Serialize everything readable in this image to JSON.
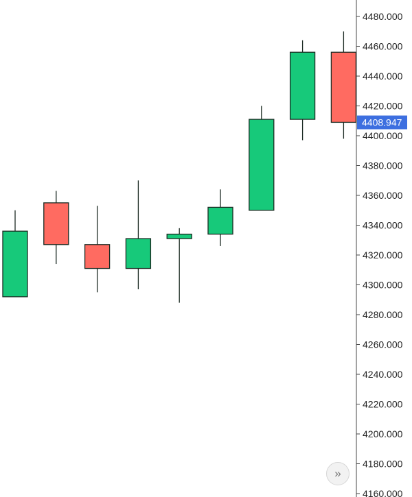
{
  "chart_data": {
    "type": "candlestick",
    "y_axis": {
      "position": "right",
      "ylim": [
        4160,
        4480
      ],
      "ticks": [
        4480,
        4460,
        4440,
        4420,
        4400,
        4380,
        4360,
        4340,
        4320,
        4300,
        4280,
        4260,
        4240,
        4220,
        4200,
        4180,
        4160
      ],
      "tick_labels": [
        "4480.000",
        "4460.000",
        "4440.000",
        "4420.000",
        "4400.000",
        "4380.000",
        "4360.000",
        "4340.000",
        "4320.000",
        "4300.000",
        "4280.000",
        "4260.000",
        "4240.000",
        "4220.000",
        "4200.000",
        "4180.000",
        "4160.000"
      ]
    },
    "grid": false,
    "candles": [
      {
        "open": 4292,
        "high": 4350,
        "low": 4292,
        "close": 4336
      },
      {
        "open": 4355,
        "high": 4363,
        "low": 4314,
        "close": 4327
      },
      {
        "open": 4327,
        "high": 4353,
        "low": 4295,
        "close": 4311
      },
      {
        "open": 4311,
        "high": 4370,
        "low": 4297,
        "close": 4331
      },
      {
        "open": 4331,
        "high": 4338,
        "low": 4288,
        "close": 4334
      },
      {
        "open": 4334,
        "high": 4364,
        "low": 4326,
        "close": 4352
      },
      {
        "open": 4350,
        "high": 4420,
        "low": 4350,
        "close": 4411
      },
      {
        "open": 4411,
        "high": 4464,
        "low": 4397,
        "close": 4456
      },
      {
        "open": 4456,
        "high": 4470,
        "low": 4398,
        "close": 4409
      }
    ],
    "current_price": {
      "value": 4408.947,
      "label": "4408.947"
    }
  },
  "colors": {
    "up": "#17c97a",
    "down": "#ff6b61",
    "outline": "#1b2a22",
    "axis_line": "#444444",
    "price_badge": "#3d6fe0"
  },
  "controls": {
    "scroll_icon": "double-chevron-right-icon",
    "scroll_glyph": "»"
  }
}
